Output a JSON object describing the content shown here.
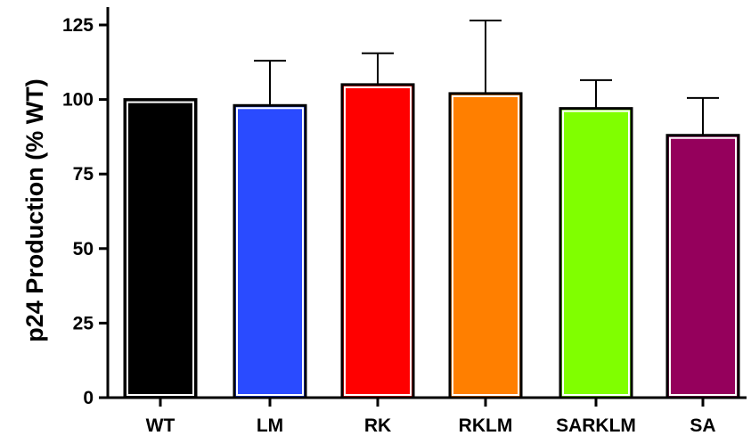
{
  "chart_data": {
    "type": "bar",
    "categories": [
      "WT",
      "LM",
      "RK",
      "RKLM",
      "SARKLM",
      "SA"
    ],
    "values": [
      100,
      98,
      105,
      102,
      97,
      88
    ],
    "error_upper": [
      0,
      15,
      10.5,
      24.5,
      9.5,
      12.5
    ],
    "colors": [
      "#000000",
      "#2a4bff",
      "#ff0000",
      "#ff7f00",
      "#80ff00",
      "#95005c"
    ],
    "ylabel": "p24 Production (% WT)",
    "xlabel": "",
    "ylim": [
      0,
      125
    ],
    "yticks": [
      0,
      25,
      50,
      75,
      100,
      125
    ],
    "grid": false
  }
}
